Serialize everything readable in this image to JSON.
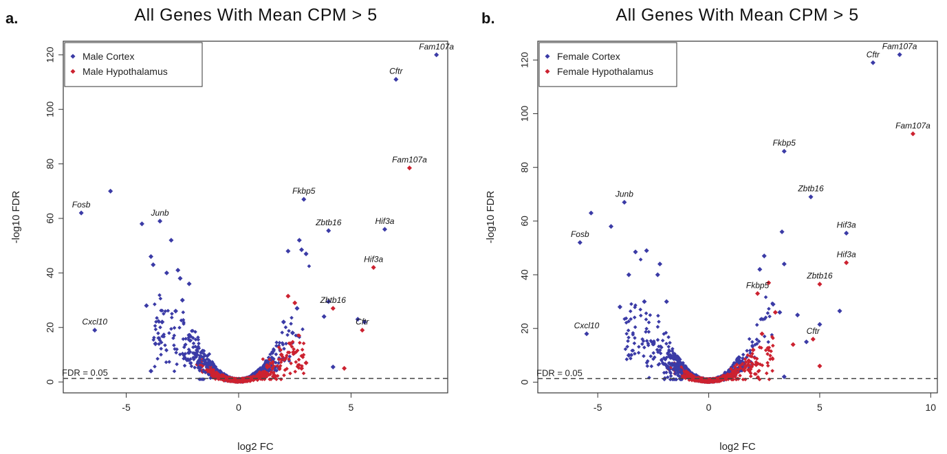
{
  "colors": {
    "cortex": "#3b3ba6",
    "hypothalamus": "#cc2230",
    "threshold": "#444444",
    "axis": "#333333"
  },
  "chart_data": [
    {
      "panel": "a.",
      "type": "scatter",
      "title": "All Genes With Mean CPM > 5",
      "xlabel": "log2 FC",
      "ylabel": "-log10 FDR",
      "xlim": [
        -7.8,
        9.3
      ],
      "ylim": [
        -4,
        125
      ],
      "xticks": [
        -5,
        0,
        5
      ],
      "yticks": [
        0,
        20,
        40,
        60,
        80,
        100,
        120
      ],
      "grid": false,
      "legend_position": "top-left",
      "threshold": {
        "y": 1.3,
        "label": "FDR = 0.05"
      },
      "series": [
        {
          "name": "Male Cortex",
          "color": "#3b3ba6",
          "points": [
            [
              8.8,
              120
            ],
            [
              7.0,
              111
            ],
            [
              -5.7,
              70
            ],
            [
              2.9,
              67
            ],
            [
              -7.0,
              62
            ],
            [
              -4.3,
              58
            ],
            [
              -3.5,
              59
            ],
            [
              4.0,
              55.5
            ],
            [
              6.5,
              56
            ],
            [
              2.7,
              52
            ],
            [
              -3.0,
              52
            ],
            [
              2.2,
              48
            ],
            [
              2.8,
              48.5
            ],
            [
              3.0,
              47
            ],
            [
              -3.9,
              46
            ],
            [
              -3.8,
              43
            ],
            [
              -2.7,
              41
            ],
            [
              -3.2,
              40
            ],
            [
              4.0,
              29.5
            ],
            [
              3.8,
              24
            ],
            [
              5.3,
              23
            ],
            [
              5.6,
              22
            ],
            [
              -6.4,
              19
            ],
            [
              -4.1,
              28
            ],
            [
              -3.4,
              22
            ],
            [
              -2.5,
              30
            ],
            [
              2.0,
              22
            ],
            [
              2.4,
              18
            ],
            [
              -2.8,
              26
            ],
            [
              -3.7,
              14
            ],
            [
              -3.9,
              4
            ],
            [
              4.2,
              5.5
            ],
            [
              2.6,
              27
            ],
            [
              -2.2,
              36
            ],
            [
              -2.6,
              38
            ]
          ]
        },
        {
          "name": "Male Hypothalamus",
          "color": "#cc2230",
          "points": [
            [
              7.6,
              78.5
            ],
            [
              6.0,
              42
            ],
            [
              4.2,
              27
            ],
            [
              5.5,
              19
            ],
            [
              2.2,
              31.5
            ],
            [
              2.5,
              29
            ],
            [
              4.7,
              5
            ],
            [
              3.0,
              7
            ],
            [
              2.8,
              5
            ],
            [
              2.3,
              14
            ],
            [
              1.9,
              10
            ]
          ]
        }
      ],
      "labels": [
        {
          "text": "Fam107a",
          "x": 8.8,
          "y": 120,
          "series": "Male Cortex"
        },
        {
          "text": "Cftr",
          "x": 7.0,
          "y": 111,
          "series": "Male Cortex"
        },
        {
          "text": "Fam107a",
          "x": 7.6,
          "y": 78.5,
          "series": "Male Hypothalamus"
        },
        {
          "text": "Fkbp5",
          "x": 2.9,
          "y": 67,
          "series": "Male Cortex"
        },
        {
          "text": "Fosb",
          "x": -7.0,
          "y": 62,
          "series": "Male Cortex"
        },
        {
          "text": "Junb",
          "x": -3.5,
          "y": 59,
          "series": "Male Cortex"
        },
        {
          "text": "Zbtb16",
          "x": 4.0,
          "y": 55.5,
          "series": "Male Cortex"
        },
        {
          "text": "Hif3a",
          "x": 6.5,
          "y": 56,
          "series": "Male Cortex"
        },
        {
          "text": "Hif3a",
          "x": 6.0,
          "y": 42,
          "series": "Male Hypothalamus"
        },
        {
          "text": "Zbtb16",
          "x": 4.2,
          "y": 27,
          "series": "Male Hypothalamus"
        },
        {
          "text": "Cxcl10",
          "x": -6.4,
          "y": 19,
          "series": "Male Cortex"
        },
        {
          "text": "Cftr",
          "x": 5.5,
          "y": 19,
          "series": "Male Hypothalamus"
        }
      ]
    },
    {
      "panel": "b.",
      "type": "scatter",
      "title": "All Genes With Mean CPM > 5",
      "xlabel": "log2 FC",
      "ylabel": "-log10 FDR",
      "xlim": [
        -7.7,
        10.3
      ],
      "ylim": [
        -4,
        127
      ],
      "xticks": [
        -5,
        0,
        5,
        10
      ],
      "yticks": [
        0,
        20,
        40,
        60,
        80,
        100,
        120
      ],
      "grid": false,
      "legend_position": "top-left",
      "threshold": {
        "y": 1.3,
        "label": "FDR = 0.05"
      },
      "series": [
        {
          "name": "Female Cortex",
          "color": "#3b3ba6",
          "points": [
            [
              8.6,
              122
            ],
            [
              7.4,
              119
            ],
            [
              3.4,
              86
            ],
            [
              4.6,
              69
            ],
            [
              -3.8,
              67
            ],
            [
              -5.3,
              63
            ],
            [
              -4.4,
              58
            ],
            [
              6.2,
              55.5
            ],
            [
              -5.8,
              52
            ],
            [
              -2.8,
              49
            ],
            [
              3.3,
              56
            ],
            [
              3.4,
              44
            ],
            [
              2.5,
              47
            ],
            [
              2.3,
              42
            ],
            [
              -3.3,
              48.5
            ],
            [
              -2.2,
              44
            ],
            [
              -2.3,
              40
            ],
            [
              -3.6,
              40
            ],
            [
              4.0,
              25
            ],
            [
              5.9,
              26.5
            ],
            [
              5.0,
              21.5
            ],
            [
              -5.5,
              18
            ],
            [
              -4.0,
              28
            ],
            [
              -2.9,
              30
            ],
            [
              -3.6,
              10
            ],
            [
              4.4,
              15
            ],
            [
              2.9,
              29
            ],
            [
              3.4,
              2
            ],
            [
              -1.9,
              30
            ],
            [
              3.2,
              26
            ]
          ]
        },
        {
          "name": "Female Hypothalamus",
          "color": "#cc2230",
          "points": [
            [
              9.2,
              92.5
            ],
            [
              6.2,
              44.5
            ],
            [
              5.0,
              36.5
            ],
            [
              2.2,
              33
            ],
            [
              4.7,
              16
            ],
            [
              5.0,
              6
            ],
            [
              3.8,
              14
            ],
            [
              2.7,
              37
            ],
            [
              3.0,
              26
            ],
            [
              2.4,
              18
            ],
            [
              2.0,
              12
            ],
            [
              1.8,
              8
            ]
          ]
        }
      ],
      "labels": [
        {
          "text": "Fam107a",
          "x": 8.6,
          "y": 122,
          "series": "Female Cortex"
        },
        {
          "text": "Cftr",
          "x": 7.4,
          "y": 119,
          "series": "Female Cortex"
        },
        {
          "text": "Fam107a",
          "x": 9.2,
          "y": 92.5,
          "series": "Female Hypothalamus"
        },
        {
          "text": "Fkbp5",
          "x": 3.4,
          "y": 86,
          "series": "Female Cortex"
        },
        {
          "text": "Zbtb16",
          "x": 4.6,
          "y": 69,
          "series": "Female Cortex"
        },
        {
          "text": "Junb",
          "x": -3.8,
          "y": 67,
          "series": "Female Cortex"
        },
        {
          "text": "Fosb",
          "x": -5.8,
          "y": 52,
          "series": "Female Cortex"
        },
        {
          "text": "Hif3a",
          "x": 6.2,
          "y": 55.5,
          "series": "Female Cortex"
        },
        {
          "text": "Hif3a",
          "x": 6.2,
          "y": 44.5,
          "series": "Female Hypothalamus"
        },
        {
          "text": "Zbtb16",
          "x": 5.0,
          "y": 36.5,
          "series": "Female Hypothalamus"
        },
        {
          "text": "Fkbp5",
          "x": 2.2,
          "y": 33,
          "series": "Female Hypothalamus"
        },
        {
          "text": "Cxcl10",
          "x": -5.5,
          "y": 18,
          "series": "Female Cortex"
        },
        {
          "text": "Cftr",
          "x": 4.7,
          "y": 16,
          "series": "Female Hypothalamus"
        }
      ]
    }
  ]
}
